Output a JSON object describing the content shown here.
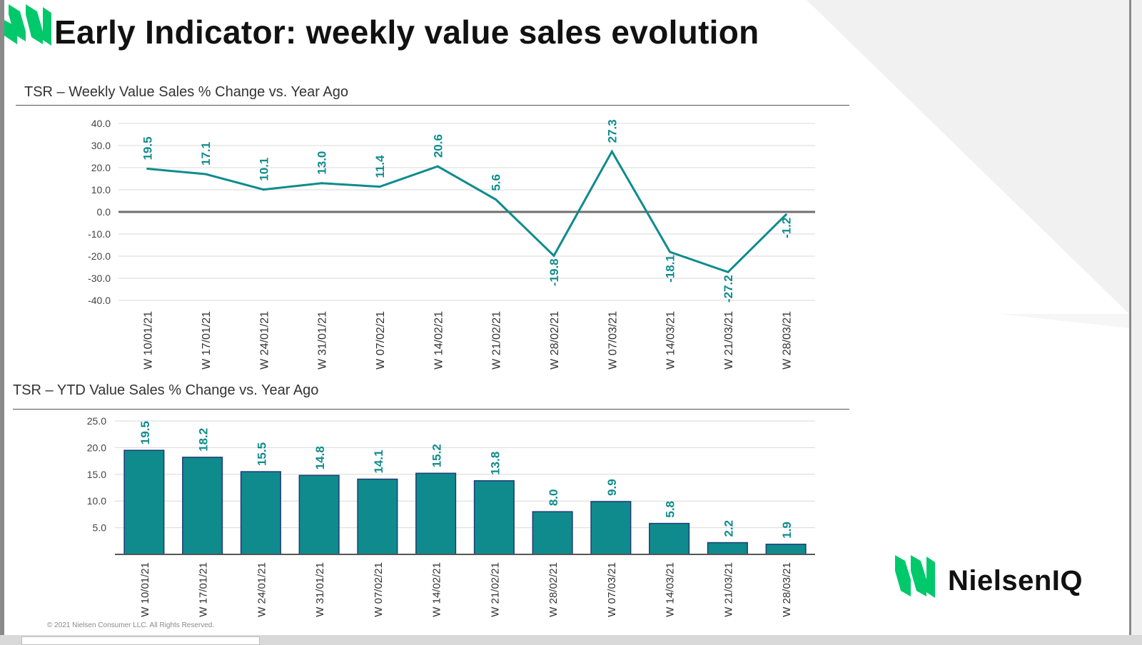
{
  "page": {
    "title": "Early Indicator: weekly value sales evolution",
    "copyright": "© 2021 Nielsen Consumer LLC. All Rights Reserved.",
    "brand": "NielsenIQ"
  },
  "colors": {
    "teal": "#0f8b8d",
    "teal_dark": "#0b7476",
    "bar_border": "#1f3b78",
    "brand_green": "#00c96b",
    "zero_line": "#6e6e6e",
    "grid": "#d9d9d9"
  },
  "icons": {
    "logo": "nielseniq-logo-icon"
  },
  "chart_data": [
    {
      "type": "line",
      "title": "TSR – Weekly Value Sales % Change vs. Year Ago",
      "categories": [
        "W 10/01/21",
        "W 17/01/21",
        "W 24/01/21",
        "W 31/01/21",
        "W 07/02/21",
        "W 14/02/21",
        "W 21/02/21",
        "W 28/02/21",
        "W 07/03/21",
        "W 14/03/21",
        "W 21/03/21",
        "W 28/03/21"
      ],
      "values": [
        19.5,
        17.1,
        10.1,
        13.0,
        11.4,
        20.6,
        5.6,
        -19.8,
        27.3,
        -18.1,
        -27.2,
        -1.2
      ],
      "labels": [
        "19.5",
        "17.1",
        "10.1",
        "13.0",
        "11.4",
        "20.6",
        "5.6",
        "-19.8",
        "27.3",
        "-18.1",
        "-27.2",
        "-1.2"
      ],
      "ylim": [
        -40,
        40
      ],
      "yticks": [
        "40.0",
        "30.0",
        "20.0",
        "10.0",
        "0.0",
        "-10.0",
        "-20.0",
        "-30.0",
        "-40.0"
      ],
      "ytick_values": [
        40,
        30,
        20,
        10,
        0,
        -10,
        -20,
        -30,
        -40
      ],
      "xlabel": "",
      "ylabel": "",
      "grid": true
    },
    {
      "type": "bar",
      "title": "TSR – YTD Value Sales % Change vs. Year Ago",
      "categories": [
        "W 10/01/21",
        "W 17/01/21",
        "W 24/01/21",
        "W 31/01/21",
        "W 07/02/21",
        "W 14/02/21",
        "W 21/02/21",
        "W 28/02/21",
        "W 07/03/21",
        "W 14/03/21",
        "W 21/03/21",
        "W 28/03/21"
      ],
      "values": [
        19.5,
        18.2,
        15.5,
        14.8,
        14.1,
        15.2,
        13.8,
        8.0,
        9.9,
        5.8,
        2.2,
        1.9
      ],
      "labels": [
        "19.5",
        "18.2",
        "15.5",
        "14.8",
        "14.1",
        "15.2",
        "13.8",
        "8.0",
        "9.9",
        "5.8",
        "2.2",
        "1.9"
      ],
      "ylim": [
        0,
        25
      ],
      "yticks": [
        "25.0",
        "20.0",
        "15.0",
        "10.0",
        "5.0"
      ],
      "ytick_values": [
        25,
        20,
        15,
        10,
        5
      ],
      "xlabel": "",
      "ylabel": "",
      "grid": true
    }
  ]
}
